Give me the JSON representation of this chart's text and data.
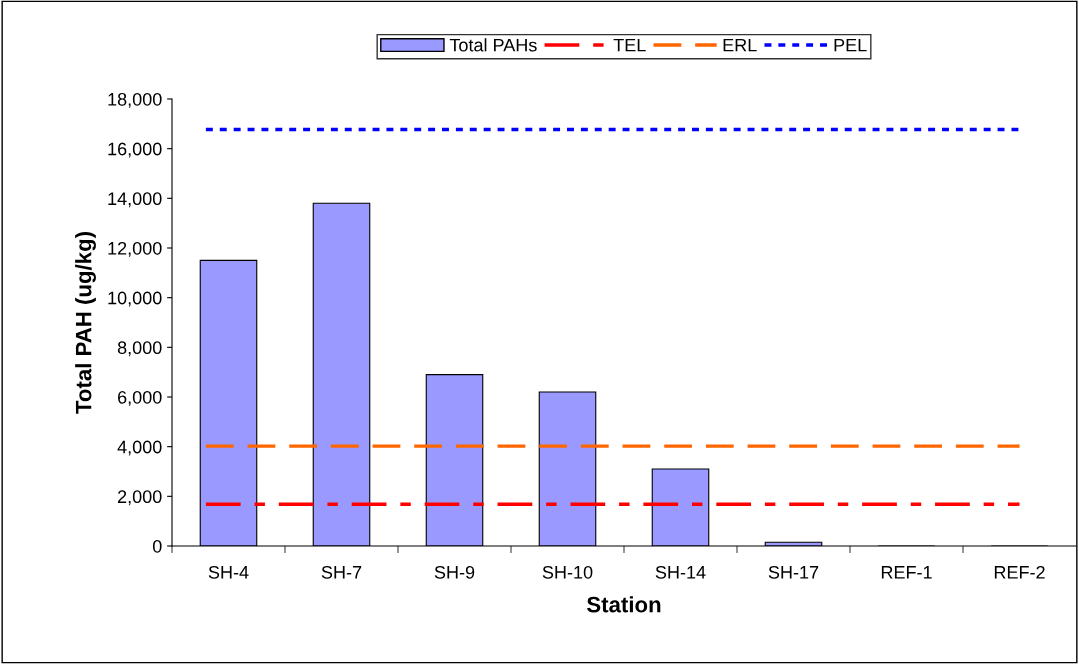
{
  "chart_data": {
    "type": "bar",
    "xlabel": "Station",
    "ylabel": "Total PAH (ug/kg)",
    "categories": [
      "SH-4",
      "SH-7",
      "SH-9",
      "SH-10",
      "SH-14",
      "SH-17",
      "REF-1",
      "REF-2"
    ],
    "series": [
      {
        "name": "Total PAHs",
        "color": "#9999ff",
        "values": [
          11500,
          13800,
          6900,
          6200,
          3100,
          150,
          0,
          0
        ]
      }
    ],
    "ylim": [
      0,
      18000
    ],
    "yticks": [
      {
        "value": 0,
        "label": "0"
      },
      {
        "value": 2000,
        "label": "2,000"
      },
      {
        "value": 4000,
        "label": "4,000"
      },
      {
        "value": 6000,
        "label": "6,000"
      },
      {
        "value": 8000,
        "label": "8,000"
      },
      {
        "value": 10000,
        "label": "10,000"
      },
      {
        "value": 12000,
        "label": "12,000"
      },
      {
        "value": 14000,
        "label": "14,000"
      },
      {
        "value": 16000,
        "label": "16,000"
      },
      {
        "value": 18000,
        "label": "18,000"
      }
    ],
    "ref_lines": [
      {
        "axis": "y",
        "value": 1684,
        "label": "TEL",
        "color": "#ff0000",
        "line_style": "dashdot"
      },
      {
        "axis": "y",
        "value": 4022,
        "label": "ERL",
        "color": "#ff6600",
        "line_style": "dashed"
      },
      {
        "axis": "y",
        "value": 16770,
        "label": "PEL",
        "color": "#0000ff",
        "line_style": "dotted"
      }
    ],
    "grid": false,
    "legend": "top"
  }
}
